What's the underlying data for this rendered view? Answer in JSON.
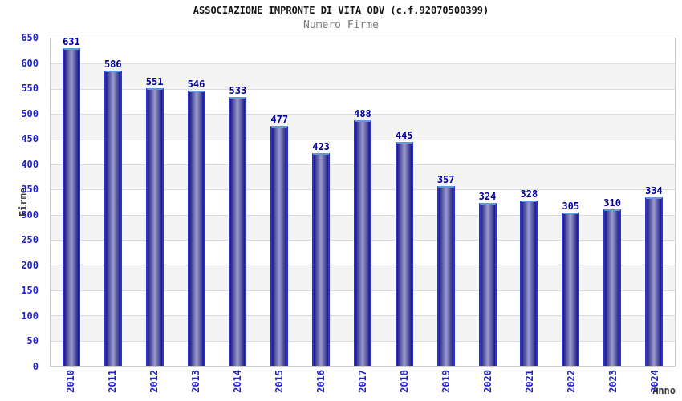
{
  "chart_data": {
    "type": "bar",
    "title": "ASSOCIAZIONE IMPRONTE DI VITA ODV (c.f.92070500399)",
    "subtitle": "Numero Firme",
    "xlabel": "Anno",
    "ylabel": "Firme",
    "categories": [
      "2010",
      "2011",
      "2012",
      "2013",
      "2014",
      "2015",
      "2016",
      "2017",
      "2018",
      "2019",
      "2020",
      "2021",
      "2022",
      "2023",
      "2024"
    ],
    "values": [
      631,
      586,
      551,
      546,
      533,
      477,
      423,
      488,
      445,
      357,
      324,
      328,
      305,
      310,
      334
    ],
    "ylim": [
      0,
      650
    ],
    "ytick_step": 50,
    "grid": true,
    "legend": false,
    "colors": {
      "bar_edge_dark": "#1a1a85",
      "bar_center_light": "#9c9ccb",
      "bar_side_border": "#2c33cc",
      "bar_top_cap": "#5c9cdc",
      "tick_label": "#2222cc",
      "value_label": "#000099",
      "gridline": "#dcdcdc",
      "band_alt": "#f4f4f4",
      "plot_border": "#cccccc",
      "title_color": "#161616",
      "subtitle_color": "#7a7a7a",
      "axis_title_color": "#3a3a3a"
    }
  }
}
